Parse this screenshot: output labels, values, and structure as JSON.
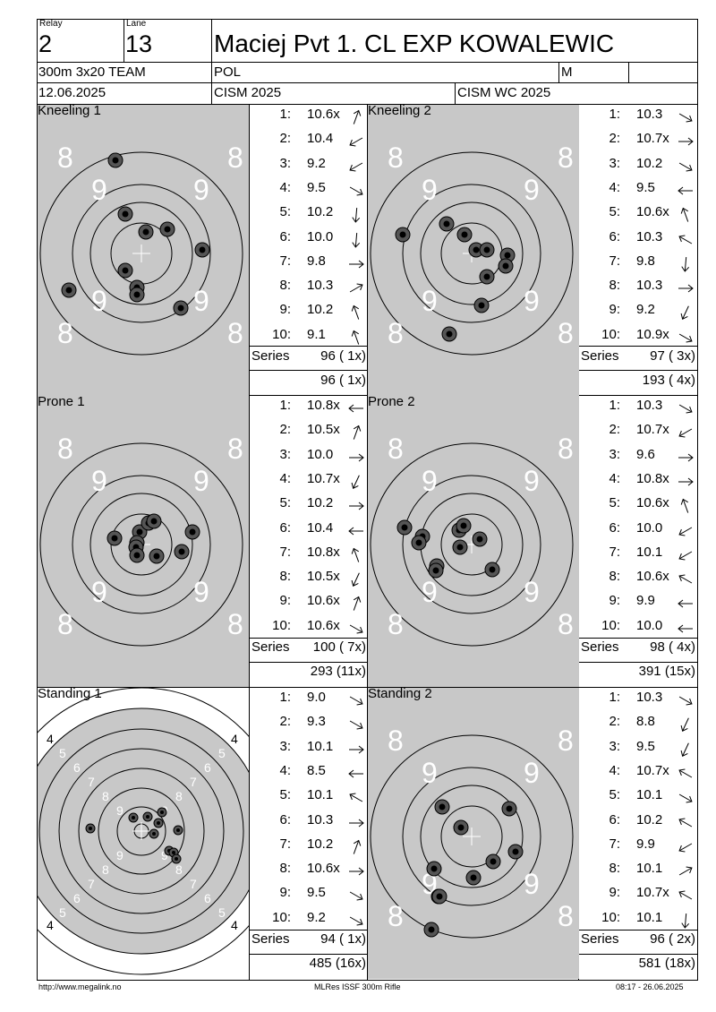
{
  "header": {
    "relay_label": "Relay",
    "relay": "2",
    "lane_label": "Lane",
    "lane": "13",
    "name": "Maciej Pvt 1. CL EXP KOWALEWIC",
    "event": "300m 3x20 TEAM",
    "nation": "POL",
    "gender": "M",
    "date": "12.06.2025",
    "competition": "CISM 2025",
    "competition2": "CISM WC 2025"
  },
  "panels": [
    {
      "title": "Kneeling 1",
      "target_kind": "prone",
      "shots": [
        {
          "n": "1:",
          "v": "10.6x",
          "d": "up-right-steep"
        },
        {
          "n": "2:",
          "v": "10.4",
          "d": "down-left"
        },
        {
          "n": "3:",
          "v": "9.2",
          "d": "down-left"
        },
        {
          "n": "4:",
          "v": "9.5",
          "d": "down-right"
        },
        {
          "n": "5:",
          "v": "10.2",
          "d": "down-steep"
        },
        {
          "n": "6:",
          "v": "10.0",
          "d": "down-steep"
        },
        {
          "n": "7:",
          "v": "9.8",
          "d": "right"
        },
        {
          "n": "8:",
          "v": "10.3",
          "d": "up-right"
        },
        {
          "n": "9:",
          "v": "10.2",
          "d": "up-left-steep"
        },
        {
          "n": "10:",
          "v": "9.1",
          "d": "up-left-steep"
        }
      ],
      "series_label": "Series",
      "series": "96 ( 1x)",
      "cumulative": "96 ( 1x)",
      "hits": [
        [
          129,
          179
        ],
        [
          140,
          239
        ],
        [
          187,
          256
        ],
        [
          163,
          259
        ],
        [
          226,
          279
        ],
        [
          140,
          302
        ],
        [
          77,
          324
        ],
        [
          153,
          321
        ],
        [
          153,
          329
        ],
        [
          202,
          344
        ]
      ]
    },
    {
      "title": "Kneeling 2",
      "target_kind": "prone",
      "shots": [
        {
          "n": "1:",
          "v": "10.3",
          "d": "down-right"
        },
        {
          "n": "2:",
          "v": "10.7x",
          "d": "right"
        },
        {
          "n": "3:",
          "v": "10.2",
          "d": "down-right"
        },
        {
          "n": "4:",
          "v": "9.5",
          "d": "left"
        },
        {
          "n": "5:",
          "v": "10.6x",
          "d": "up-left-steep"
        },
        {
          "n": "6:",
          "v": "10.3",
          "d": "up-left"
        },
        {
          "n": "7:",
          "v": "9.8",
          "d": "down-steep"
        },
        {
          "n": "8:",
          "v": "10.3",
          "d": "right"
        },
        {
          "n": "9:",
          "v": "9.2",
          "d": "down-left-steep"
        },
        {
          "n": "10:",
          "v": "10.9x",
          "d": "down-right"
        }
      ],
      "series_label": "Series",
      "series": "97 ( 3x)",
      "cumulative": "193 ( 4x)",
      "hits": [
        [
          450,
          262
        ],
        [
          499,
          250
        ],
        [
          519,
          262
        ],
        [
          532,
          279
        ],
        [
          544,
          279
        ],
        [
          567,
          285
        ],
        [
          565,
          297
        ],
        [
          544,
          309
        ],
        [
          538,
          341
        ],
        [
          502,
          373
        ]
      ]
    },
    {
      "title": "Prone 1",
      "target_kind": "prone",
      "shots": [
        {
          "n": "1:",
          "v": "10.8x",
          "d": "left"
        },
        {
          "n": "2:",
          "v": "10.5x",
          "d": "up-right-steep"
        },
        {
          "n": "3:",
          "v": "10.0",
          "d": "right"
        },
        {
          "n": "4:",
          "v": "10.7x",
          "d": "down-left-steep"
        },
        {
          "n": "5:",
          "v": "10.2",
          "d": "right"
        },
        {
          "n": "6:",
          "v": "10.4",
          "d": "left"
        },
        {
          "n": "7:",
          "v": "10.8x",
          "d": "up-left-steep"
        },
        {
          "n": "8:",
          "v": "10.5x",
          "d": "down-left-steep"
        },
        {
          "n": "9:",
          "v": "10.6x",
          "d": "up-right-steep"
        },
        {
          "n": "10:",
          "v": "10.6x",
          "d": "down-right"
        }
      ],
      "series_label": "Series",
      "series": "100 ( 7x)",
      "cumulative": "293 (11x)",
      "hits": [
        [
          128,
          601
        ],
        [
          156,
          594
        ],
        [
          166,
          584
        ],
        [
          172,
          582
        ],
        [
          215,
          594
        ],
        [
          153,
          606
        ],
        [
          203,
          616
        ],
        [
          175,
          621
        ],
        [
          152,
          611
        ],
        [
          153,
          620
        ]
      ]
    },
    {
      "title": "Prone 2",
      "target_kind": "prone",
      "shots": [
        {
          "n": "1:",
          "v": "10.3",
          "d": "down-right"
        },
        {
          "n": "2:",
          "v": "10.7x",
          "d": "down-left"
        },
        {
          "n": "3:",
          "v": "9.6",
          "d": "right"
        },
        {
          "n": "4:",
          "v": "10.8x",
          "d": "right"
        },
        {
          "n": "5:",
          "v": "10.6x",
          "d": "up-left-steep"
        },
        {
          "n": "6:",
          "v": "10.0",
          "d": "down-left"
        },
        {
          "n": "7:",
          "v": "10.1",
          "d": "down-left"
        },
        {
          "n": "8:",
          "v": "10.6x",
          "d": "up-left"
        },
        {
          "n": "9:",
          "v": "9.9",
          "d": "left"
        },
        {
          "n": "10:",
          "v": "10.0",
          "d": "left"
        }
      ],
      "series_label": "Series",
      "series": "98 ( 4x)",
      "cumulative": "391 (15x)",
      "hits": [
        [
          452,
          589
        ],
        [
          472,
          599
        ],
        [
          468,
          606
        ],
        [
          513,
          592
        ],
        [
          518,
          587
        ],
        [
          536,
          602
        ],
        [
          514,
          611
        ],
        [
          488,
          632
        ],
        [
          487,
          637
        ],
        [
          550,
          636
        ]
      ]
    },
    {
      "title": "Standing 1",
      "target_kind": "standing",
      "shots": [
        {
          "n": "1:",
          "v": "9.0",
          "d": "down-right"
        },
        {
          "n": "2:",
          "v": "9.3",
          "d": "down-right"
        },
        {
          "n": "3:",
          "v": "10.1",
          "d": "right"
        },
        {
          "n": "4:",
          "v": "8.5",
          "d": "left"
        },
        {
          "n": "5:",
          "v": "10.1",
          "d": "up-left"
        },
        {
          "n": "6:",
          "v": "10.3",
          "d": "right"
        },
        {
          "n": "7:",
          "v": "10.2",
          "d": "up-right-steep"
        },
        {
          "n": "8:",
          "v": "10.6x",
          "d": "right"
        },
        {
          "n": "9:",
          "v": "9.5",
          "d": "down-right"
        },
        {
          "n": "10:",
          "v": "9.2",
          "d": "down-right"
        }
      ],
      "series_label": "Series",
      "series": "94 ( 1x)",
      "cumulative": "485 (16x)",
      "hits": [
        [
          149,
          913
        ],
        [
          165,
          912
        ],
        [
          181,
          907
        ],
        [
          177,
          919
        ],
        [
          101,
          925
        ],
        [
          199,
          927
        ],
        [
          172,
          931
        ],
        [
          189,
          950
        ],
        [
          194,
          952
        ],
        [
          197,
          959
        ]
      ]
    },
    {
      "title": "Standing 2",
      "target_kind": "prone",
      "shots": [
        {
          "n": "1:",
          "v": "10.3",
          "d": "down-right"
        },
        {
          "n": "2:",
          "v": "8.8",
          "d": "down-left-steep"
        },
        {
          "n": "3:",
          "v": "9.5",
          "d": "down-left-steep"
        },
        {
          "n": "4:",
          "v": "10.7x",
          "d": "up-left"
        },
        {
          "n": "5:",
          "v": "10.1",
          "d": "down-right"
        },
        {
          "n": "6:",
          "v": "10.2",
          "d": "up-left"
        },
        {
          "n": "7:",
          "v": "9.9",
          "d": "down-left"
        },
        {
          "n": "8:",
          "v": "10.1",
          "d": "up-right"
        },
        {
          "n": "9:",
          "v": "10.7x",
          "d": "up-left"
        },
        {
          "n": "10:",
          "v": "10.1",
          "d": "down-steep"
        }
      ],
      "series_label": "Series",
      "series": "96 ( 2x)",
      "cumulative": "581 (18x)",
      "hits": [
        [
          494,
          901
        ],
        [
          569,
          903
        ],
        [
          515,
          924
        ],
        [
          576,
          951
        ],
        [
          551,
          962
        ],
        [
          485,
          970
        ],
        [
          529,
          980
        ],
        [
          490,
          1001
        ],
        [
          482,
          1038
        ],
        [
          491,
          1001
        ]
      ]
    }
  ],
  "footer": {
    "left": "http://www.megalink.no",
    "center": "MLRes ISSF 300m Rifle",
    "right": "08:17 - 26.06.2025"
  }
}
